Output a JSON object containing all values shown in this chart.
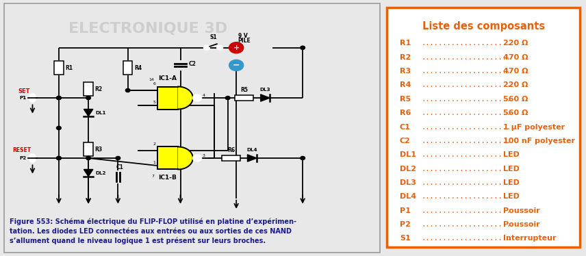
{
  "fig_width": 8.56,
  "fig_height": 3.74,
  "dpi": 100,
  "left_bg": "#e8e8e8",
  "right_bg": "#ffffff",
  "left_panel": {
    "title_text": "ELECTRONIQUE 3D",
    "title_color": "#c8c8c8",
    "title_fontsize": 16,
    "figure_caption": "Figure 553: Schéma électrique du FLIP-FLOP utilisé en platine d’expérimen-\ntation. Les diodes LED connectées aux entrées ou aux sorties de ces NAND\ns’allument quand le niveau logique 1 est présent sur leurs broches.",
    "caption_fontsize": 7.0,
    "caption_color": "#1a1a8c"
  },
  "right_panel": {
    "border_color": "#e8600a",
    "border_linewidth": 2.5,
    "title": "Liste des composants",
    "title_color": "#e8600a",
    "title_fontsize": 10.5,
    "items_color": "#e8600a",
    "items_fontsize": 8.0,
    "items": [
      [
        "R1",
        ".....................",
        "220 Ω"
      ],
      [
        "R2",
        ".....................",
        "470 Ω"
      ],
      [
        "R3",
        ".....................",
        "470 Ω"
      ],
      [
        "R4",
        ".....................",
        "220 Ω"
      ],
      [
        "R5",
        ".....................",
        "560 Ω"
      ],
      [
        "R6",
        ".....................",
        "560 Ω"
      ],
      [
        "C1",
        ".....................",
        "1 μF polyester"
      ],
      [
        "C2",
        ".....................",
        "100 nF polyester"
      ],
      [
        "DL1",
        "....................",
        "LED"
      ],
      [
        "DL2",
        "....................",
        "LED"
      ],
      [
        "DL3",
        "....................",
        "LED"
      ],
      [
        "DL4",
        "....................",
        "LED"
      ],
      [
        "P1",
        ".....................",
        "Poussoir"
      ],
      [
        "P2",
        ".....................",
        "Poussoir"
      ],
      [
        "S1",
        ".....................",
        "Interrupteur"
      ]
    ]
  },
  "nand_color": "#ffff00",
  "wire_color": "#000000",
  "set_color": "#cc0000",
  "reset_color": "#cc0000"
}
